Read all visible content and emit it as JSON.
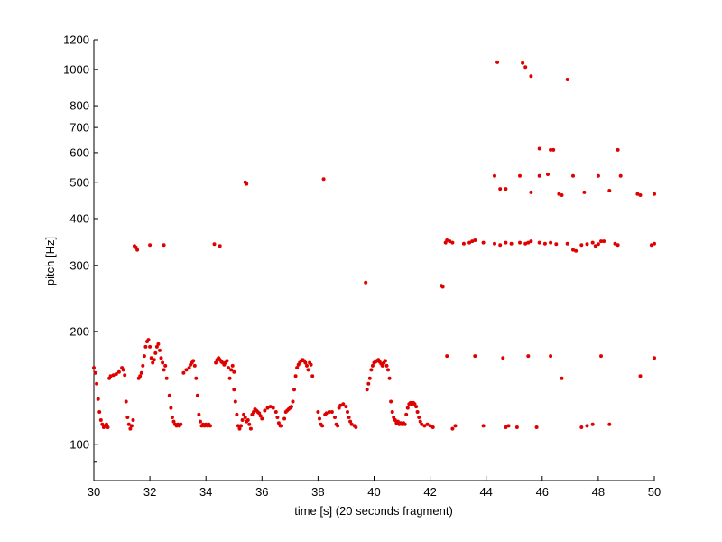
{
  "chart_data": {
    "type": "scatter",
    "xlabel": "time [s] (20 seconds fragment)",
    "ylabel": "pitch [Hz]",
    "xlim": [
      30,
      50
    ],
    "ylim": [
      80,
      1200
    ],
    "yscale": "log",
    "grid": false,
    "x_ticks": [
      30,
      32,
      34,
      36,
      38,
      40,
      42,
      44,
      46,
      48,
      50
    ],
    "y_ticks": [
      100,
      200,
      300,
      400,
      500,
      600,
      700,
      800,
      1000,
      1200
    ],
    "y_minor_ticks": [
      90
    ],
    "marker_color": "#e00000",
    "points": [
      [
        30.0,
        160
      ],
      [
        30.05,
        155
      ],
      [
        30.1,
        145
      ],
      [
        30.15,
        132
      ],
      [
        30.2,
        122
      ],
      [
        30.25,
        116
      ],
      [
        30.3,
        113
      ],
      [
        30.35,
        111
      ],
      [
        30.4,
        112
      ],
      [
        30.45,
        113
      ],
      [
        30.5,
        111
      ],
      [
        30.55,
        150
      ],
      [
        30.6,
        152
      ],
      [
        30.7,
        153
      ],
      [
        30.8,
        154
      ],
      [
        30.9,
        156
      ],
      [
        31.0,
        160
      ],
      [
        31.05,
        158
      ],
      [
        31.1,
        153
      ],
      [
        31.15,
        130
      ],
      [
        31.2,
        118
      ],
      [
        31.25,
        113
      ],
      [
        31.3,
        110
      ],
      [
        31.35,
        112
      ],
      [
        31.4,
        116
      ],
      [
        31.45,
        338
      ],
      [
        31.5,
        335
      ],
      [
        31.55,
        330
      ],
      [
        31.6,
        150
      ],
      [
        31.65,
        152
      ],
      [
        31.7,
        155
      ],
      [
        31.75,
        162
      ],
      [
        31.8,
        172
      ],
      [
        31.85,
        182
      ],
      [
        31.9,
        188
      ],
      [
        31.95,
        190
      ],
      [
        32.0,
        182
      ],
      [
        32.05,
        170
      ],
      [
        32.1,
        165
      ],
      [
        32.15,
        168
      ],
      [
        32.2,
        175
      ],
      [
        32.25,
        182
      ],
      [
        32.3,
        185
      ],
      [
        32.35,
        178
      ],
      [
        32.4,
        170
      ],
      [
        32.45,
        165
      ],
      [
        32.5,
        158
      ],
      [
        32.55,
        162
      ],
      [
        32.6,
        150
      ],
      [
        32.0,
        340
      ],
      [
        32.5,
        340
      ],
      [
        32.7,
        135
      ],
      [
        32.75,
        125
      ],
      [
        32.8,
        118
      ],
      [
        32.85,
        115
      ],
      [
        32.9,
        113
      ],
      [
        32.95,
        112
      ],
      [
        33.0,
        113
      ],
      [
        33.05,
        112
      ],
      [
        33.1,
        113
      ],
      [
        33.2,
        155
      ],
      [
        33.3,
        158
      ],
      [
        33.4,
        160
      ],
      [
        33.45,
        163
      ],
      [
        33.5,
        165
      ],
      [
        33.55,
        167
      ],
      [
        33.6,
        162
      ],
      [
        33.65,
        150
      ],
      [
        33.7,
        135
      ],
      [
        33.75,
        120
      ],
      [
        33.8,
        115
      ],
      [
        33.85,
        112
      ],
      [
        33.9,
        113
      ],
      [
        33.95,
        112
      ],
      [
        34.0,
        113
      ],
      [
        34.05,
        112
      ],
      [
        34.1,
        113
      ],
      [
        34.15,
        112
      ],
      [
        34.3,
        342
      ],
      [
        34.5,
        338
      ],
      [
        34.35,
        165
      ],
      [
        34.4,
        168
      ],
      [
        34.45,
        170
      ],
      [
        34.5,
        168
      ],
      [
        34.55,
        166
      ],
      [
        34.6,
        165
      ],
      [
        34.65,
        163
      ],
      [
        34.7,
        165
      ],
      [
        34.75,
        167
      ],
      [
        34.8,
        160
      ],
      [
        34.85,
        150
      ],
      [
        34.9,
        158
      ],
      [
        34.95,
        162
      ],
      [
        35.0,
        156
      ],
      [
        35.0,
        140
      ],
      [
        35.05,
        130
      ],
      [
        35.1,
        120
      ],
      [
        35.15,
        112
      ],
      [
        35.2,
        110
      ],
      [
        35.25,
        112
      ],
      [
        35.3,
        116
      ],
      [
        35.35,
        120
      ],
      [
        35.4,
        118
      ],
      [
        35.45,
        115
      ],
      [
        35.5,
        116
      ],
      [
        35.55,
        113
      ],
      [
        35.6,
        110
      ],
      [
        35.4,
        500
      ],
      [
        35.45,
        495
      ],
      [
        35.65,
        120
      ],
      [
        35.7,
        122
      ],
      [
        35.75,
        124
      ],
      [
        35.8,
        123
      ],
      [
        35.85,
        122
      ],
      [
        35.9,
        121
      ],
      [
        35.95,
        119
      ],
      [
        36.0,
        117
      ],
      [
        36.1,
        123
      ],
      [
        36.2,
        125
      ],
      [
        36.3,
        126
      ],
      [
        36.4,
        125
      ],
      [
        36.5,
        122
      ],
      [
        36.55,
        118
      ],
      [
        36.6,
        114
      ],
      [
        36.65,
        112
      ],
      [
        36.7,
        112
      ],
      [
        36.8,
        117
      ],
      [
        36.85,
        122
      ],
      [
        36.9,
        123
      ],
      [
        36.95,
        124
      ],
      [
        37.0,
        125
      ],
      [
        37.05,
        126
      ],
      [
        37.1,
        130
      ],
      [
        37.15,
        140
      ],
      [
        37.2,
        152
      ],
      [
        37.25,
        160
      ],
      [
        37.3,
        163
      ],
      [
        37.35,
        165
      ],
      [
        37.4,
        167
      ],
      [
        37.45,
        168
      ],
      [
        37.5,
        167
      ],
      [
        37.55,
        165
      ],
      [
        37.6,
        162
      ],
      [
        37.65,
        158
      ],
      [
        37.7,
        165
      ],
      [
        37.75,
        163
      ],
      [
        37.8,
        152
      ],
      [
        38.0,
        122
      ],
      [
        38.05,
        117
      ],
      [
        38.1,
        113
      ],
      [
        38.15,
        112
      ],
      [
        38.2,
        510
      ],
      [
        38.25,
        120
      ],
      [
        38.3,
        121
      ],
      [
        38.4,
        122
      ],
      [
        38.5,
        122
      ],
      [
        38.6,
        118
      ],
      [
        38.65,
        113
      ],
      [
        38.7,
        112
      ],
      [
        38.75,
        125
      ],
      [
        38.8,
        127
      ],
      [
        38.9,
        128
      ],
      [
        39.0,
        126
      ],
      [
        39.05,
        122
      ],
      [
        39.1,
        118
      ],
      [
        39.15,
        115
      ],
      [
        39.2,
        113
      ],
      [
        39.3,
        112
      ],
      [
        39.35,
        111
      ],
      [
        39.7,
        270
      ],
      [
        39.75,
        140
      ],
      [
        39.8,
        145
      ],
      [
        39.85,
        150
      ],
      [
        39.9,
        158
      ],
      [
        39.95,
        162
      ],
      [
        40.0,
        165
      ],
      [
        40.05,
        166
      ],
      [
        40.1,
        167
      ],
      [
        40.15,
        168
      ],
      [
        40.2,
        166
      ],
      [
        40.25,
        164
      ],
      [
        40.3,
        162
      ],
      [
        40.35,
        165
      ],
      [
        40.4,
        167
      ],
      [
        40.45,
        162
      ],
      [
        40.5,
        158
      ],
      [
        40.55,
        150
      ],
      [
        40.6,
        130
      ],
      [
        40.65,
        122
      ],
      [
        40.7,
        118
      ],
      [
        40.75,
        116
      ],
      [
        40.8,
        114
      ],
      [
        40.85,
        115
      ],
      [
        40.9,
        113
      ],
      [
        40.95,
        114
      ],
      [
        41.0,
        113
      ],
      [
        41.05,
        114
      ],
      [
        41.1,
        113
      ],
      [
        41.15,
        120
      ],
      [
        41.2,
        125
      ],
      [
        41.25,
        128
      ],
      [
        41.3,
        129
      ],
      [
        41.35,
        128
      ],
      [
        41.4,
        129
      ],
      [
        41.45,
        128
      ],
      [
        41.5,
        126
      ],
      [
        41.55,
        122
      ],
      [
        41.6,
        118
      ],
      [
        41.65,
        115
      ],
      [
        41.7,
        113
      ],
      [
        41.8,
        112
      ],
      [
        41.9,
        113
      ],
      [
        42.0,
        112
      ],
      [
        42.1,
        111
      ],
      [
        42.4,
        265
      ],
      [
        42.45,
        263
      ],
      [
        42.55,
        345
      ],
      [
        42.6,
        350
      ],
      [
        42.7,
        348
      ],
      [
        42.8,
        345
      ],
      [
        43.2,
        343
      ],
      [
        43.4,
        345
      ],
      [
        43.5,
        348
      ],
      [
        43.6,
        350
      ],
      [
        43.9,
        345
      ],
      [
        44.3,
        343
      ],
      [
        44.5,
        340
      ],
      [
        44.7,
        345
      ],
      [
        44.9,
        343
      ],
      [
        45.2,
        345
      ],
      [
        45.4,
        343
      ],
      [
        45.5,
        345
      ],
      [
        45.6,
        348
      ],
      [
        45.9,
        345
      ],
      [
        46.1,
        343
      ],
      [
        46.3,
        345
      ],
      [
        46.5,
        342
      ],
      [
        46.9,
        343
      ],
      [
        47.1,
        330
      ],
      [
        47.2,
        328
      ],
      [
        47.4,
        340
      ],
      [
        47.6,
        342
      ],
      [
        47.8,
        345
      ],
      [
        47.9,
        338
      ],
      [
        48.0,
        342
      ],
      [
        48.1,
        348
      ],
      [
        48.2,
        348
      ],
      [
        48.6,
        343
      ],
      [
        48.7,
        340
      ],
      [
        49.9,
        340
      ],
      [
        50.0,
        343
      ],
      [
        42.6,
        172
      ],
      [
        43.6,
        172
      ],
      [
        44.6,
        170
      ],
      [
        45.5,
        172
      ],
      [
        46.3,
        172
      ],
      [
        48.1,
        172
      ],
      [
        50.0,
        170
      ],
      [
        42.8,
        110
      ],
      [
        42.9,
        112
      ],
      [
        43.9,
        112
      ],
      [
        44.7,
        111
      ],
      [
        44.8,
        112
      ],
      [
        45.1,
        111
      ],
      [
        45.8,
        111
      ],
      [
        47.4,
        111
      ],
      [
        47.6,
        112
      ],
      [
        47.8,
        113
      ],
      [
        48.4,
        113
      ],
      [
        46.7,
        150
      ],
      [
        49.5,
        152
      ],
      [
        44.3,
        520
      ],
      [
        44.5,
        480
      ],
      [
        44.7,
        480
      ],
      [
        45.2,
        520
      ],
      [
        45.6,
        470
      ],
      [
        45.9,
        520
      ],
      [
        46.2,
        525
      ],
      [
        46.6,
        465
      ],
      [
        46.7,
        462
      ],
      [
        47.1,
        520
      ],
      [
        47.5,
        470
      ],
      [
        48.0,
        520
      ],
      [
        48.4,
        475
      ],
      [
        48.8,
        520
      ],
      [
        49.4,
        465
      ],
      [
        49.5,
        462
      ],
      [
        50.0,
        465
      ],
      [
        45.9,
        615
      ],
      [
        46.3,
        610
      ],
      [
        46.4,
        610
      ],
      [
        48.7,
        610
      ],
      [
        44.4,
        1045
      ],
      [
        45.3,
        1040
      ],
      [
        45.4,
        1015
      ],
      [
        45.6,
        960
      ],
      [
        46.9,
        940
      ]
    ]
  }
}
